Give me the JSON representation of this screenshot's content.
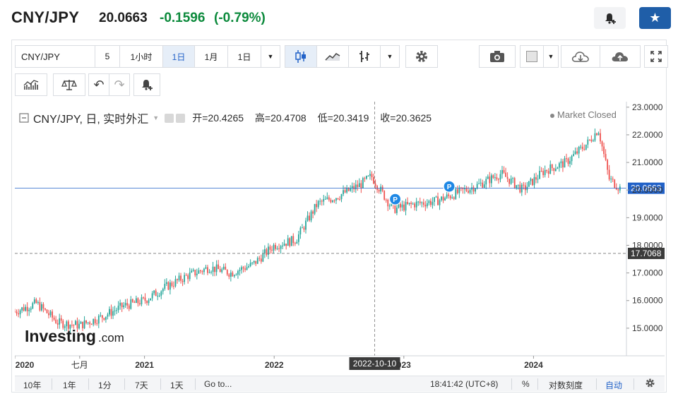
{
  "header": {
    "pair": "CNY/JPY",
    "last_price": "20.0663",
    "change": "-0.1596",
    "change_pct": "(-0.79%)"
  },
  "toolbar": {
    "symbol": "CNY/JPY",
    "interval_count": "5",
    "interval_1h": "1小时",
    "interval_1d": "1日",
    "interval_1m": "1月",
    "interval_select": "1日"
  },
  "legend": {
    "symbol_desc": "CNY/JPY, 日, 实时外汇",
    "open_label": "开=",
    "open": "20.4265",
    "high_label": "高=",
    "high": "20.4708",
    "low_label": "低=",
    "low": "20.3419",
    "close_label": "收=",
    "close": "20.3625",
    "market_status": "Market Closed"
  },
  "watermark": {
    "brand": "Investing",
    "suffix": ".com"
  },
  "price_axis": {
    "ticks": [
      "23.0000",
      "22.0000",
      "21.0000",
      "20.0000",
      "19.0000",
      "18.0000",
      "17.0000",
      "16.0000",
      "15.0000"
    ],
    "last_price_label": "20.0663",
    "crosshair_label": "17.7068"
  },
  "time_axis": {
    "labels": [
      "2020",
      "七月",
      "2021",
      "2022",
      "023",
      "2024"
    ],
    "crosshair_label": "2022-10-10"
  },
  "bottom_bar": {
    "ranges": [
      "10年",
      "1年",
      "1分",
      "7天",
      "1天"
    ],
    "goto": "Go to...",
    "clock": "18:41:42 (UTC+8)",
    "percent": "%",
    "log": "对数刻度",
    "auto": "自动"
  },
  "colors": {
    "up": "#26a69a",
    "down": "#ef5350",
    "accent": "#2262c8",
    "change_green": "#0c8a3c"
  },
  "chart_data": {
    "type": "candlestick",
    "x_start": "2020-01",
    "x_end": "2024-09",
    "ylim": [
      14.0,
      23.2
    ],
    "y_ticks": [
      23,
      22,
      21,
      20,
      19,
      18,
      17,
      16,
      15
    ],
    "last_price": 20.0663,
    "crosshair_price": 17.7068,
    "crosshair_date": "2022-10-10",
    "markers": [
      "P",
      "P"
    ],
    "trend": [
      {
        "x": "2020-01",
        "y": 15.6
      },
      {
        "x": "2020-03",
        "y": 15.9
      },
      {
        "x": "2020-05",
        "y": 15.2
      },
      {
        "x": "2020-07",
        "y": 15.1
      },
      {
        "x": "2020-09",
        "y": 15.4
      },
      {
        "x": "2020-11",
        "y": 15.8
      },
      {
        "x": "2021-01",
        "y": 16.0
      },
      {
        "x": "2021-03",
        "y": 16.5
      },
      {
        "x": "2021-05",
        "y": 16.9
      },
      {
        "x": "2021-07",
        "y": 17.2
      },
      {
        "x": "2021-09",
        "y": 17.0
      },
      {
        "x": "2021-11",
        "y": 17.3
      },
      {
        "x": "2022-01",
        "y": 18.0
      },
      {
        "x": "2022-03",
        "y": 18.2
      },
      {
        "x": "2022-05",
        "y": 19.5
      },
      {
        "x": "2022-07",
        "y": 19.8
      },
      {
        "x": "2022-09",
        "y": 20.2
      },
      {
        "x": "2022-10",
        "y": 20.5
      },
      {
        "x": "2022-12",
        "y": 19.3
      },
      {
        "x": "2023-02",
        "y": 19.5
      },
      {
        "x": "2023-04",
        "y": 19.6
      },
      {
        "x": "2023-06",
        "y": 19.9
      },
      {
        "x": "2023-08",
        "y": 20.2
      },
      {
        "x": "2023-10",
        "y": 20.6
      },
      {
        "x": "2023-12",
        "y": 20.0
      },
      {
        "x": "2024-02",
        "y": 20.7
      },
      {
        "x": "2024-04",
        "y": 21.0
      },
      {
        "x": "2024-06",
        "y": 21.7
      },
      {
        "x": "2024-07",
        "y": 22.2
      },
      {
        "x": "2024-08",
        "y": 20.4
      },
      {
        "x": "2024-09",
        "y": 20.07
      }
    ]
  }
}
